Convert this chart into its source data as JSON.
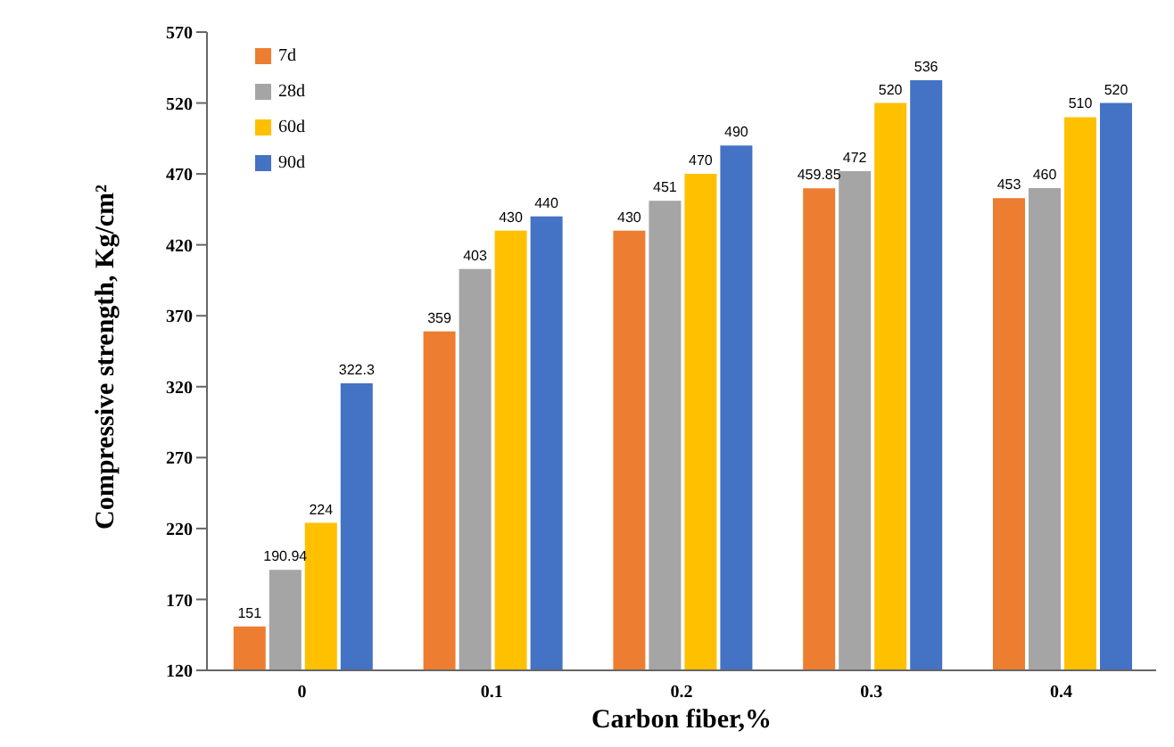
{
  "chart_data": {
    "type": "bar",
    "xlabel": "Carbon fiber,%",
    "ylabel": "Compressive strength, Kg/cm²",
    "categories": [
      "0",
      "0.1",
      "0.2",
      "0.3",
      "0.4"
    ],
    "series": [
      {
        "name": "7d",
        "color": "#ed7d31",
        "values": [
          151,
          359,
          430,
          459.85,
          453
        ]
      },
      {
        "name": "28d",
        "color": "#a5a5a5",
        "values": [
          190.94,
          403,
          451,
          472,
          460
        ]
      },
      {
        "name": "60d",
        "color": "#ffc000",
        "values": [
          224,
          430,
          470,
          520,
          510
        ]
      },
      {
        "name": "90d",
        "color": "#4472c4",
        "values": [
          322.3,
          440,
          490,
          536,
          520
        ]
      }
    ],
    "ylim": [
      120,
      570
    ],
    "yticks": [
      120,
      170,
      220,
      270,
      320,
      370,
      420,
      470,
      520,
      570
    ],
    "data_labels": true,
    "legend": "top left",
    "grid": false
  }
}
